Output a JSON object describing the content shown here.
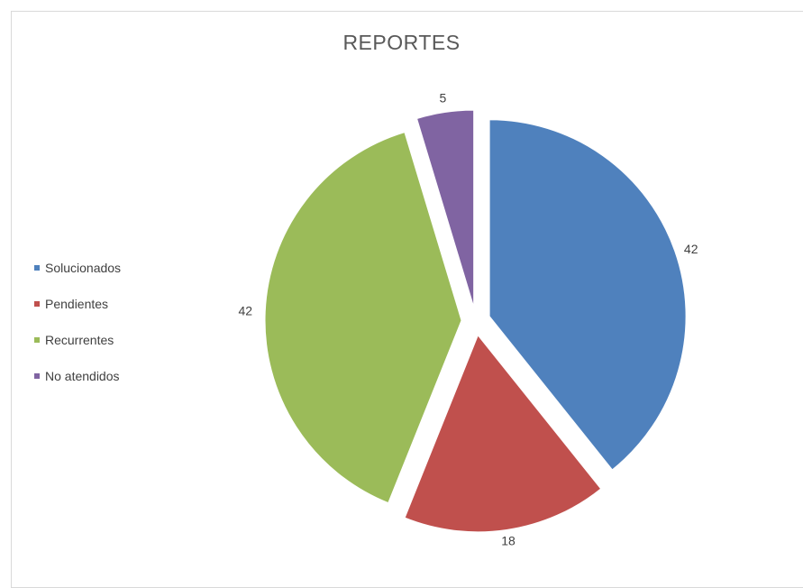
{
  "chart_data": {
    "type": "pie",
    "title": "REPORTES",
    "categories": [
      "Solucionados",
      "Pendientes",
      "Recurrentes",
      "No atendidos"
    ],
    "values": [
      42,
      18,
      42,
      5
    ],
    "data_labels": [
      "42",
      "18",
      "42",
      "5"
    ],
    "colors": [
      "#4f81bd",
      "#c0504d",
      "#9bbb59",
      "#8064a2"
    ],
    "exploded": true,
    "legend_position": "left"
  }
}
